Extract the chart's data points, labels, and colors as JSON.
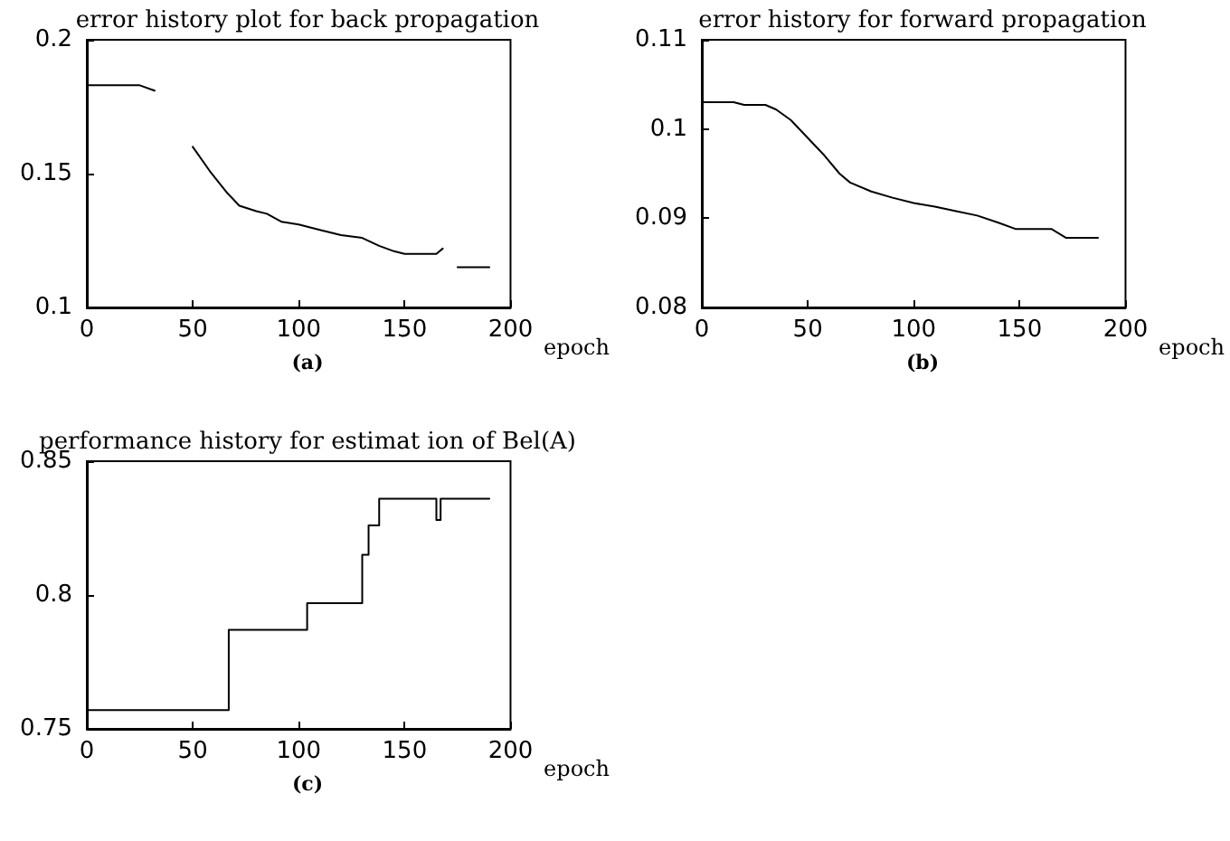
{
  "chart_data": [
    {
      "type": "line",
      "title": "error history plot for back propagation",
      "xlabel": "epoch",
      "annotations": [
        "(a)"
      ],
      "x": [
        0,
        10,
        20,
        25,
        32,
        40,
        50,
        58,
        66,
        72,
        80,
        85,
        92,
        100,
        110,
        120,
        130,
        138,
        145,
        150,
        158,
        165,
        168,
        172,
        175,
        190
      ],
      "series": [
        {
          "color": "#000000",
          "values": [
            0.183,
            0.183,
            0.183,
            0.183,
            0.181,
            null,
            0.16,
            0.151,
            0.143,
            0.138,
            0.136,
            0.135,
            0.132,
            0.131,
            0.129,
            0.127,
            0.126,
            0.123,
            0.121,
            0.12,
            0.12,
            0.12,
            0.122,
            null,
            0.115,
            0.115
          ]
        }
      ],
      "xlim": [
        0,
        200
      ],
      "xticks": [
        0,
        50,
        100,
        150,
        200
      ],
      "ylim": [
        0.1,
        0.2
      ],
      "yticks": [
        0.1,
        0.15,
        0.2
      ],
      "grid": false,
      "marker": "none",
      "line_style": "solid"
    },
    {
      "type": "line",
      "title": "error history for forward propagation",
      "xlabel": "epoch",
      "annotations": [
        "(b)"
      ],
      "x": [
        0,
        15,
        20,
        30,
        35,
        42,
        50,
        58,
        65,
        70,
        80,
        90,
        100,
        110,
        120,
        130,
        140,
        148,
        165,
        172,
        187
      ],
      "series": [
        {
          "color": "#000000",
          "values": [
            0.103,
            0.103,
            0.1027,
            0.1027,
            0.1022,
            0.101,
            0.099,
            0.097,
            0.095,
            0.094,
            0.093,
            0.0923,
            0.0917,
            0.0913,
            0.0908,
            0.0903,
            0.0895,
            0.0888,
            0.0888,
            0.0878,
            0.0878
          ]
        }
      ],
      "xlim": [
        0,
        200
      ],
      "xticks": [
        0,
        50,
        100,
        150,
        200
      ],
      "ylim": [
        0.08,
        0.11
      ],
      "yticks": [
        0.08,
        0.09,
        0.1,
        0.11
      ],
      "grid": false,
      "marker": "none",
      "line_style": "solid"
    },
    {
      "type": "step",
      "title": "performance history for estimat ion of Bel(A)",
      "xlabel": "epoch",
      "annotations": [
        "(c)"
      ],
      "x": [
        0,
        67,
        104,
        130,
        133,
        138,
        165,
        167,
        190
      ],
      "series": [
        {
          "color": "#000000",
          "values": [
            0.757,
            0.787,
            0.797,
            0.815,
            0.826,
            0.836,
            0.828,
            0.836,
            0.836
          ]
        }
      ],
      "xlim": [
        0,
        200
      ],
      "xticks": [
        0,
        50,
        100,
        150,
        200
      ],
      "ylim": [
        0.75,
        0.85
      ],
      "yticks": [
        0.75,
        0.8,
        0.85
      ],
      "grid": false,
      "marker": "none",
      "line_style": "solid"
    }
  ]
}
